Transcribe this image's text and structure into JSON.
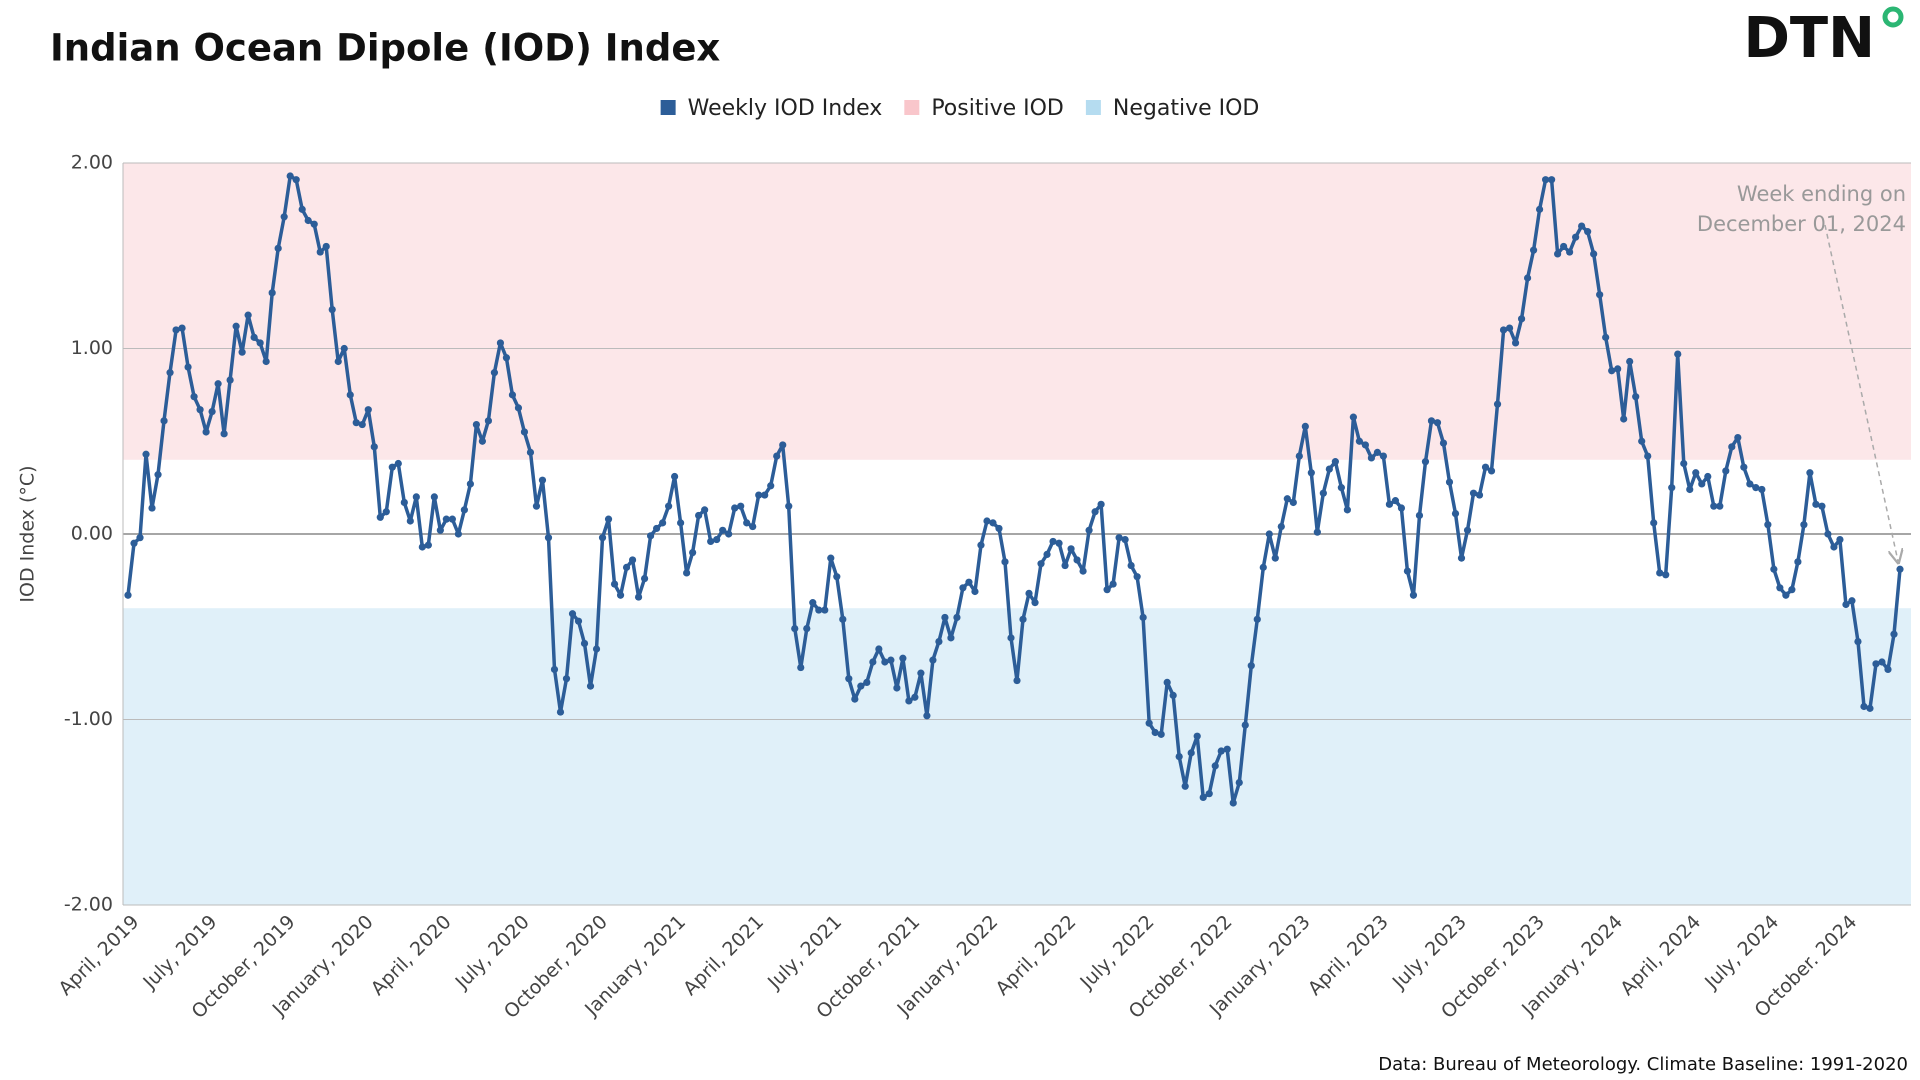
{
  "chart_data": {
    "type": "line",
    "title": "Indian Ocean Dipole (IOD) Index",
    "logo": "DTN",
    "y_label": "IOD Index (°C)",
    "source": "Data: Bureau of Meteorology. Climate Baseline: 1991-2020",
    "annotation": [
      "Week ending on",
      "December 01, 2024"
    ],
    "ylim": [
      -2,
      2
    ],
    "yticks": [
      {
        "value": -2,
        "label": "-2.00"
      },
      {
        "value": -1,
        "label": "-1.00"
      },
      {
        "value": 0,
        "label": "0.00"
      },
      {
        "value": 1,
        "label": "1.00"
      },
      {
        "value": 2,
        "label": "2.00"
      }
    ],
    "grid": true,
    "bands": [
      {
        "name": "Positive IOD",
        "color": "#f9c6cb",
        "range": [
          0.4,
          2
        ]
      },
      {
        "name": "Negative IOD",
        "color": "#b5dcf0",
        "range": [
          -2,
          -0.4
        ]
      }
    ],
    "categories": [
      "April, 2019",
      null,
      null,
      null,
      null,
      null,
      null,
      null,
      null,
      null,
      null,
      null,
      null,
      "July, 2019",
      null,
      null,
      null,
      null,
      null,
      null,
      null,
      null,
      null,
      null,
      null,
      null,
      "October, 2019",
      null,
      null,
      null,
      null,
      null,
      null,
      null,
      null,
      null,
      null,
      null,
      null,
      "January, 2020",
      null,
      null,
      null,
      null,
      null,
      null,
      null,
      null,
      null,
      null,
      null,
      null,
      "April, 2020",
      null,
      null,
      null,
      null,
      null,
      null,
      null,
      null,
      null,
      null,
      null,
      null,
      "July, 2020",
      null,
      null,
      null,
      null,
      null,
      null,
      null,
      null,
      null,
      null,
      null,
      null,
      "October, 2020",
      null,
      null,
      null,
      null,
      null,
      null,
      null,
      null,
      null,
      null,
      null,
      null,
      "January, 2021",
      null,
      null,
      null,
      null,
      null,
      null,
      null,
      null,
      null,
      null,
      null,
      null,
      "April, 2021",
      null,
      null,
      null,
      null,
      null,
      null,
      null,
      null,
      null,
      null,
      null,
      null,
      "July, 2021",
      null,
      null,
      null,
      null,
      null,
      null,
      null,
      null,
      null,
      null,
      null,
      null,
      "October, 2021",
      null,
      null,
      null,
      null,
      null,
      null,
      null,
      null,
      null,
      null,
      null,
      null,
      "January, 2022",
      null,
      null,
      null,
      null,
      null,
      null,
      null,
      null,
      null,
      null,
      null,
      null,
      "April, 2022",
      null,
      null,
      null,
      null,
      null,
      null,
      null,
      null,
      null,
      null,
      null,
      null,
      "July, 2022",
      null,
      null,
      null,
      null,
      null,
      null,
      null,
      null,
      null,
      null,
      null,
      null,
      "October, 2022",
      null,
      null,
      null,
      null,
      null,
      null,
      null,
      null,
      null,
      null,
      null,
      null,
      "January, 2023",
      null,
      null,
      null,
      null,
      null,
      null,
      null,
      null,
      null,
      null,
      null,
      null,
      "April, 2023",
      null,
      null,
      null,
      null,
      null,
      null,
      null,
      null,
      null,
      null,
      null,
      null,
      "July, 2023",
      null,
      null,
      null,
      null,
      null,
      null,
      null,
      null,
      null,
      null,
      null,
      null,
      "October, 2023",
      null,
      null,
      null,
      null,
      null,
      null,
      null,
      null,
      null,
      null,
      null,
      null,
      "January, 2024",
      null,
      null,
      null,
      null,
      null,
      null,
      null,
      null,
      null,
      null,
      null,
      null,
      "April, 2024",
      null,
      null,
      null,
      null,
      null,
      null,
      null,
      null,
      null,
      null,
      null,
      null,
      "July, 2024",
      null,
      null,
      null,
      null,
      null,
      null,
      null,
      null,
      null,
      null,
      null,
      null,
      "October. 2024",
      null,
      null,
      null,
      null,
      null,
      null,
      null,
      null,
      null
    ],
    "series": [
      {
        "name": "Weekly IOD Index",
        "color": "#2c5d98",
        "values": [
          -0.33,
          -0.05,
          -0.02,
          0.43,
          0.14,
          0.32,
          0.61,
          0.87,
          1.1,
          1.11,
          0.9,
          0.74,
          0.67,
          0.55,
          0.66,
          0.81,
          0.54,
          0.83,
          1.12,
          0.98,
          1.18,
          1.06,
          1.03,
          0.93,
          1.3,
          1.54,
          1.71,
          1.93,
          1.91,
          1.75,
          1.69,
          1.67,
          1.52,
          1.55,
          1.21,
          0.93,
          1.0,
          0.75,
          0.6,
          0.59,
          0.67,
          0.47,
          0.09,
          0.12,
          0.36,
          0.38,
          0.17,
          0.07,
          0.2,
          -0.07,
          -0.06,
          0.2,
          0.02,
          0.08,
          0.08,
          0.0,
          0.13,
          0.27,
          0.59,
          0.5,
          0.61,
          0.87,
          1.03,
          0.95,
          0.75,
          0.68,
          0.55,
          0.44,
          0.15,
          0.29,
          -0.02,
          -0.73,
          -0.96,
          -0.78,
          -0.43,
          -0.47,
          -0.59,
          -0.82,
          -0.62,
          -0.02,
          0.08,
          -0.27,
          -0.33,
          -0.18,
          -0.14,
          -0.34,
          -0.24,
          -0.01,
          0.03,
          0.06,
          0.15,
          0.31,
          0.06,
          -0.21,
          -0.1,
          0.1,
          0.13,
          -0.04,
          -0.03,
          0.02,
          0.0,
          0.14,
          0.15,
          0.06,
          0.04,
          0.21,
          0.21,
          0.26,
          0.42,
          0.48,
          0.15,
          -0.51,
          -0.72,
          -0.51,
          -0.37,
          -0.41,
          -0.41,
          -0.13,
          -0.23,
          -0.46,
          -0.78,
          -0.89,
          -0.82,
          -0.8,
          -0.69,
          -0.62,
          -0.69,
          -0.68,
          -0.83,
          -0.67,
          -0.9,
          -0.88,
          -0.75,
          -0.98,
          -0.68,
          -0.58,
          -0.45,
          -0.56,
          -0.45,
          -0.29,
          -0.26,
          -0.31,
          -0.06,
          0.07,
          0.06,
          0.03,
          -0.15,
          -0.56,
          -0.79,
          -0.46,
          -0.32,
          -0.37,
          -0.16,
          -0.11,
          -0.04,
          -0.05,
          -0.17,
          -0.08,
          -0.14,
          -0.2,
          0.02,
          0.12,
          0.16,
          -0.3,
          -0.27,
          -0.02,
          -0.03,
          -0.17,
          -0.23,
          -0.45,
          -1.02,
          -1.07,
          -1.08,
          -0.8,
          -0.87,
          -1.2,
          -1.36,
          -1.18,
          -1.09,
          -1.42,
          -1.4,
          -1.25,
          -1.17,
          -1.16,
          -1.45,
          -1.34,
          -1.03,
          -0.71,
          -0.46,
          -0.18,
          0.0,
          -0.13,
          0.04,
          0.19,
          0.17,
          0.42,
          0.58,
          0.33,
          0.01,
          0.22,
          0.35,
          0.39,
          0.25,
          0.13,
          0.63,
          0.5,
          0.48,
          0.41,
          0.44,
          0.42,
          0.16,
          0.18,
          0.14,
          -0.2,
          -0.33,
          0.1,
          0.39,
          0.61,
          0.6,
          0.49,
          0.28,
          0.11,
          -0.13,
          0.02,
          0.22,
          0.21,
          0.36,
          0.34,
          0.7,
          1.1,
          1.11,
          1.03,
          1.16,
          1.38,
          1.53,
          1.75,
          1.91,
          1.91,
          1.51,
          1.55,
          1.52,
          1.6,
          1.66,
          1.63,
          1.51,
          1.29,
          1.06,
          0.88,
          0.89,
          0.62,
          0.93,
          0.74,
          0.5,
          0.42,
          0.06,
          -0.21,
          -0.22,
          0.25,
          0.97,
          0.38,
          0.24,
          0.33,
          0.27,
          0.31,
          0.15,
          0.15,
          0.34,
          0.47,
          0.52,
          0.36,
          0.27,
          0.25,
          0.24,
          0.05,
          -0.19,
          -0.29,
          -0.33,
          -0.3,
          -0.15,
          0.05,
          0.33,
          0.16,
          0.15,
          0.0,
          -0.07,
          -0.03,
          -0.38,
          -0.36,
          -0.58,
          -0.93,
          -0.94,
          -0.7,
          -0.69,
          -0.73,
          -0.54,
          -0.19
        ]
      }
    ]
  }
}
